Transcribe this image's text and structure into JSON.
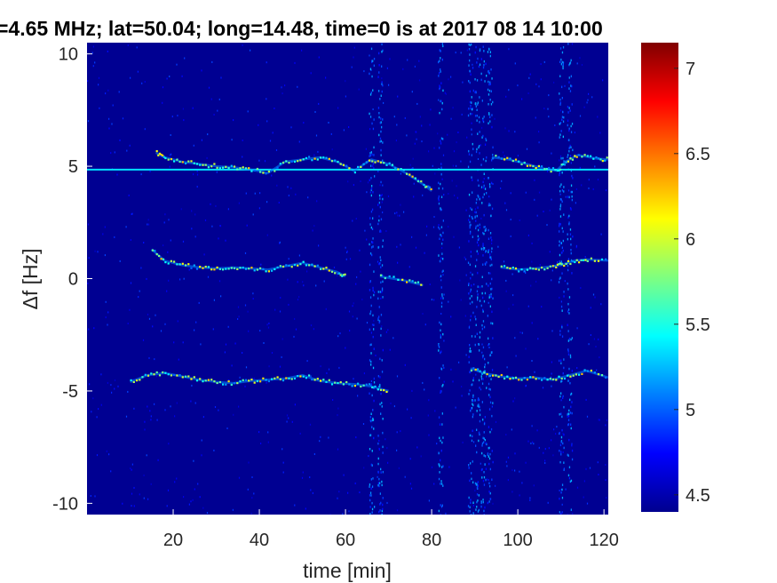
{
  "chart_data": {
    "type": "heatmap",
    "title": "=4.65 MHz;  lat=50.04; long=14.48, time=0 is at 2017 08 14 10:00",
    "xlabel": "time [min]",
    "ylabel": "Δf [Hz]",
    "xlim": [
      0,
      121
    ],
    "ylim": [
      -10.5,
      10.5
    ],
    "x_ticks": [
      20,
      40,
      60,
      80,
      100,
      120
    ],
    "x_tick_labels": [
      "20",
      "40",
      "60",
      "80",
      "100",
      "120"
    ],
    "y_ticks": [
      10,
      5,
      0,
      -5,
      -10
    ],
    "y_tick_labels": [
      "10",
      "5",
      "0",
      "-5",
      "-10"
    ],
    "colorbar": {
      "range": [
        4.4,
        7.15
      ],
      "ticks": [
        4.5,
        5,
        5.5,
        6,
        6.5,
        7
      ],
      "tick_labels": [
        "4.5",
        "5",
        "5.5",
        "6",
        "6.5",
        "7"
      ],
      "colormap": "jet"
    },
    "background_value": 4.45,
    "constant_line": {
      "y": 4.85,
      "x": [
        0,
        121
      ],
      "value": 5.35
    },
    "vertical_noise_bands_x": [
      66,
      68,
      82,
      89,
      90.5,
      92,
      93.5,
      110,
      112
    ],
    "traces": [
      {
        "name": "",
        "x": [
          16,
          18,
          22,
          26,
          30,
          34,
          38,
          42,
          46,
          50,
          54,
          58,
          62,
          66,
          70,
          74,
          78,
          80
        ],
        "y": [
          5.6,
          5.4,
          5.2,
          5.1,
          5.0,
          4.95,
          4.85,
          4.7,
          5.2,
          5.3,
          5.4,
          5.2,
          4.8,
          5.3,
          5.1,
          4.7,
          4.2,
          3.9
        ]
      },
      {
        "name": "",
        "x": [
          94,
          98,
          102,
          106,
          109,
          111,
          114,
          118,
          121
        ],
        "y": [
          5.4,
          5.3,
          5.1,
          4.9,
          4.8,
          5.2,
          5.5,
          5.35,
          5.3
        ]
      },
      {
        "name": "",
        "x": [
          15,
          18,
          22,
          26,
          30,
          34,
          38,
          42,
          46,
          50,
          54,
          58,
          60
        ],
        "y": [
          1.3,
          0.8,
          0.6,
          0.5,
          0.45,
          0.5,
          0.45,
          0.4,
          0.55,
          0.7,
          0.5,
          0.3,
          0.1
        ]
      },
      {
        "name": "",
        "x": [
          68,
          74,
          78
        ],
        "y": [
          0.1,
          -0.1,
          -0.3
        ]
      },
      {
        "name": "",
        "x": [
          96,
          100,
          104,
          108,
          110,
          113,
          116,
          121
        ],
        "y": [
          0.5,
          0.4,
          0.45,
          0.55,
          0.6,
          0.8,
          0.85,
          0.8
        ]
      },
      {
        "name": "",
        "x": [
          10,
          14,
          18,
          22,
          26,
          30,
          34,
          38,
          42,
          46,
          50,
          54,
          58,
          62,
          66,
          70
        ],
        "y": [
          -4.6,
          -4.3,
          -4.2,
          -4.35,
          -4.5,
          -4.6,
          -4.65,
          -4.55,
          -4.5,
          -4.45,
          -4.3,
          -4.55,
          -4.65,
          -4.7,
          -4.8,
          -5.0
        ]
      },
      {
        "name": "",
        "x": [
          89,
          92,
          96,
          100,
          104,
          108,
          112,
          116,
          121
        ],
        "y": [
          -4.0,
          -4.2,
          -4.35,
          -4.45,
          -4.4,
          -4.5,
          -4.3,
          -4.1,
          -4.4
        ]
      }
    ]
  }
}
